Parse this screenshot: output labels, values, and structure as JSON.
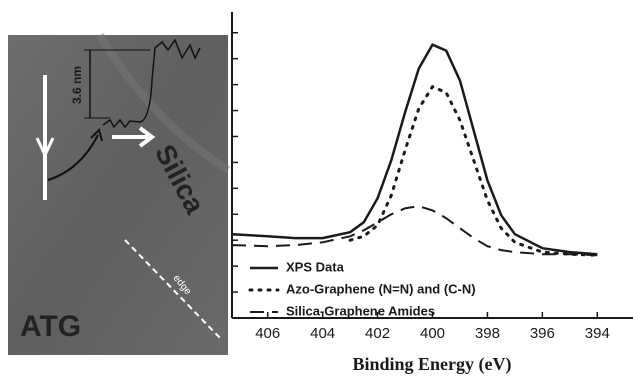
{
  "image": {
    "scale_label": "3.6 nm",
    "surface_label": "Silica",
    "edge_label": "edge",
    "sample_label": "ATG"
  },
  "chart_data": {
    "type": "line",
    "xlabel": "Binding Energy (eV)",
    "x": [
      407.3,
      406,
      405,
      404,
      403,
      402.5,
      402,
      401.5,
      401,
      400.5,
      400,
      399.5,
      399,
      398.5,
      398,
      397.5,
      397,
      396,
      395,
      394
    ],
    "xlim": [
      407.3,
      392.7
    ],
    "xticks": [
      406,
      404,
      402,
      400,
      398,
      396,
      394
    ],
    "ylim": [
      0,
      11.8
    ],
    "yticks": [
      1,
      2,
      3,
      4,
      5,
      6,
      7,
      8,
      9,
      10,
      11
    ],
    "legend": "lower left",
    "series": [
      {
        "name": "XPS Data",
        "color": "#1a1a1a",
        "style": "solid",
        "values": [
          3.23,
          3.15,
          3.08,
          3.08,
          3.31,
          3.69,
          4.62,
          6.08,
          7.92,
          9.62,
          10.54,
          10.31,
          9.15,
          7.23,
          5.31,
          3.96,
          3.23,
          2.69,
          2.54,
          2.46
        ]
      },
      {
        "name": "Azo-Graphene  (N=N) and (C-N)",
        "color": "#1a1a1a",
        "style": "dotted",
        "values": [
          null,
          null,
          null,
          null,
          3.0,
          3.15,
          3.58,
          4.73,
          6.46,
          8.08,
          8.92,
          8.69,
          7.62,
          6.08,
          4.54,
          3.46,
          2.92,
          2.54,
          2.46,
          2.42
        ]
      },
      {
        "name": "Silica-Graphene Amides",
        "color": "#1a1a1a",
        "style": "dashed",
        "values": [
          2.81,
          2.77,
          2.81,
          2.92,
          3.15,
          3.38,
          3.69,
          4.0,
          4.23,
          4.31,
          4.15,
          3.85,
          3.46,
          3.08,
          2.77,
          2.62,
          2.54,
          2.46,
          2.46,
          2.42
        ]
      }
    ]
  }
}
